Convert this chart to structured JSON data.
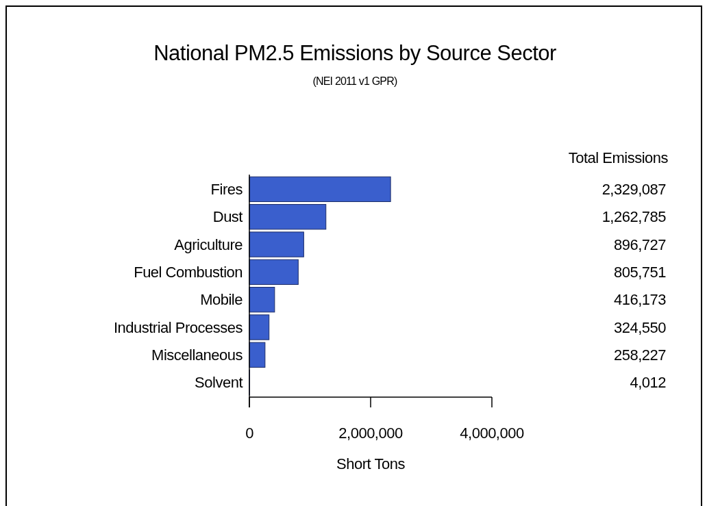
{
  "chart_data": {
    "type": "bar",
    "orientation": "horizontal",
    "title": "National PM2.5 Emissions by Source Sector",
    "subtitle": "(NEI 2011 v1 GPR)",
    "xlabel": "Short Tons",
    "categories": [
      "Fires",
      "Dust",
      "Agriculture",
      "Fuel Combustion",
      "Mobile",
      "Industrial Processes",
      "Miscellaneous",
      "Solvent"
    ],
    "values": [
      2329087,
      1262785,
      896727,
      805751,
      416173,
      324550,
      258227,
      4012
    ],
    "value_labels": [
      "2,329,087",
      "1,262,785",
      "896,727",
      "805,751",
      "416,173",
      "324,550",
      "258,227",
      "4,012"
    ],
    "color": "#3a5fcd",
    "xlim": [
      0,
      4000000
    ],
    "xticks": [
      0,
      {
        "value": 2000000,
        "label": "2,000,000"
      },
      {
        "value": 4000000,
        "label": "4,000,000"
      }
    ],
    "annotations": [
      "Total Emissions"
    ]
  }
}
